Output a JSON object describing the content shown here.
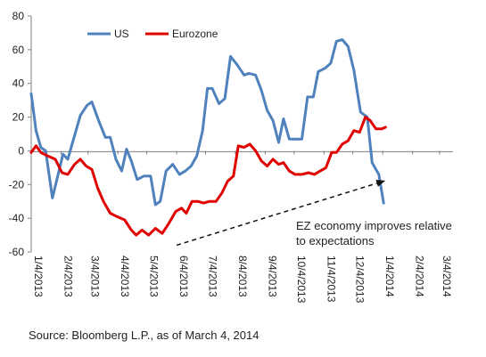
{
  "chart_data": {
    "type": "line",
    "title": "",
    "xlabel": "",
    "ylabel": "",
    "ylim": [
      -60,
      80
    ],
    "yticks": [
      -60,
      -40,
      -20,
      0,
      20,
      40,
      60,
      80
    ],
    "xlim": [
      "1/4/2013",
      "3/18/2014"
    ],
    "x_tick_labels": [
      "1/4/2013",
      "2/4/2013",
      "3/4/2013",
      "4/4/2013",
      "5/4/2013",
      "6/4/2013",
      "7/4/2013",
      "8/4/2013",
      "9/4/2013",
      "10/4/2013",
      "11/4/2013",
      "12/4/2013",
      "1/4/2014",
      "2/4/2014",
      "3/4/2014"
    ],
    "grid": false,
    "legend_position": "top-left",
    "series": [
      {
        "name": "US",
        "color": "#4f81bd",
        "points": [
          [
            "1/4/2013",
            34
          ],
          [
            "1/9/2013",
            12
          ],
          [
            "1/14/2013",
            2
          ],
          [
            "1/19/2013",
            0
          ],
          [
            "1/26/2013",
            -28
          ],
          [
            "2/1/2013",
            -14
          ],
          [
            "2/6/2013",
            -2
          ],
          [
            "2/11/2013",
            -5
          ],
          [
            "2/17/2013",
            7
          ],
          [
            "2/24/2013",
            21
          ],
          [
            "3/3/2013",
            27
          ],
          [
            "3/8/2013",
            29
          ],
          [
            "3/15/2013",
            18
          ],
          [
            "3/22/2013",
            8
          ],
          [
            "3/27/2013",
            8
          ],
          [
            "4/2/2013",
            -5
          ],
          [
            "4/8/2013",
            -12
          ],
          [
            "4/13/2013",
            1
          ],
          [
            "4/18/2013",
            -6
          ],
          [
            "4/24/2013",
            -17
          ],
          [
            "5/1/2013",
            -15
          ],
          [
            "5/8/2013",
            -15
          ],
          [
            "5/13/2013",
            -32
          ],
          [
            "5/18/2013",
            -30
          ],
          [
            "5/24/2013",
            -12
          ],
          [
            "5/31/2013",
            -8
          ],
          [
            "6/7/2013",
            -14
          ],
          [
            "6/13/2013",
            -12
          ],
          [
            "6/19/2013",
            -9
          ],
          [
            "6/25/2013",
            -3
          ],
          [
            "7/1/2013",
            12
          ],
          [
            "7/6/2013",
            37
          ],
          [
            "7/11/2013",
            37
          ],
          [
            "7/18/2013",
            28
          ],
          [
            "7/24/2013",
            31
          ],
          [
            "7/30/2013",
            56
          ],
          [
            "8/6/2013",
            51
          ],
          [
            "8/13/2013",
            45
          ],
          [
            "8/18/2013",
            46
          ],
          [
            "8/25/2013",
            45
          ],
          [
            "8/31/2013",
            36
          ],
          [
            "9/6/2013",
            24
          ],
          [
            "9/12/2013",
            18
          ],
          [
            "9/18/2013",
            5
          ],
          [
            "9/23/2013",
            19
          ],
          [
            "9/29/2013",
            7
          ],
          [
            "10/6/2013",
            7
          ],
          [
            "10/12/2013",
            7
          ],
          [
            "10/18/2013",
            32
          ],
          [
            "10/24/2013",
            32
          ],
          [
            "10/29/2013",
            47
          ],
          [
            "11/5/2013",
            49
          ],
          [
            "11/11/2013",
            52
          ],
          [
            "11/17/2013",
            65
          ],
          [
            "11/23/2013",
            66
          ],
          [
            "11/29/2013",
            62
          ],
          [
            "12/5/2013",
            48
          ],
          [
            "12/12/2013",
            23
          ],
          [
            "12/19/2013",
            20
          ],
          [
            "12/24/2013",
            -7
          ],
          [
            "12/31/2013",
            -14
          ],
          [
            "1/5/2014",
            -31
          ]
        ]
      },
      {
        "name": "Eurozone",
        "color": "#e00000",
        "points": [
          [
            "1/4/2013",
            -1
          ],
          [
            "1/9/2013",
            3
          ],
          [
            "1/14/2013",
            -1
          ],
          [
            "1/21/2013",
            -3
          ],
          [
            "1/29/2013",
            -5
          ],
          [
            "2/5/2013",
            -13
          ],
          [
            "2/11/2013",
            -14
          ],
          [
            "2/18/2013",
            -8
          ],
          [
            "2/24/2013",
            -5
          ],
          [
            "3/2/2013",
            -9
          ],
          [
            "3/8/2013",
            -11
          ],
          [
            "3/14/2013",
            -22
          ],
          [
            "3/20/2013",
            -30
          ],
          [
            "3/27/2013",
            -37
          ],
          [
            "4/3/2013",
            -39
          ],
          [
            "4/11/2013",
            -41
          ],
          [
            "4/18/2013",
            -47
          ],
          [
            "4/23/2013",
            -50
          ],
          [
            "4/29/2013",
            -47
          ],
          [
            "5/6/2013",
            -50
          ],
          [
            "5/13/2013",
            -46
          ],
          [
            "5/20/2013",
            -49
          ],
          [
            "5/27/2013",
            -43
          ],
          [
            "6/3/2013",
            -36
          ],
          [
            "6/9/2013",
            -34
          ],
          [
            "6/14/2013",
            -37
          ],
          [
            "6/20/2013",
            -30
          ],
          [
            "6/26/2013",
            -30
          ],
          [
            "7/2/2013",
            -31
          ],
          [
            "7/8/2013",
            -30
          ],
          [
            "7/15/2013",
            -30
          ],
          [
            "7/21/2013",
            -25
          ],
          [
            "7/27/2013",
            -18
          ],
          [
            "8/2/2013",
            -15
          ],
          [
            "8/7/2013",
            3
          ],
          [
            "8/13/2013",
            2
          ],
          [
            "8/19/2013",
            4
          ],
          [
            "8/25/2013",
            0
          ],
          [
            "8/31/2013",
            -6
          ],
          [
            "9/6/2013",
            -9
          ],
          [
            "9/12/2013",
            -5
          ],
          [
            "9/18/2013",
            -8
          ],
          [
            "9/23/2013",
            -7
          ],
          [
            "9/29/2013",
            -12
          ],
          [
            "10/5/2013",
            -14
          ],
          [
            "10/12/2013",
            -14
          ],
          [
            "10/19/2013",
            -13
          ],
          [
            "10/25/2013",
            -14
          ],
          [
            "10/31/2013",
            -12
          ],
          [
            "11/6/2013",
            -10
          ],
          [
            "11/12/2013",
            -1
          ],
          [
            "11/17/2013",
            -1
          ],
          [
            "11/23/2013",
            4
          ],
          [
            "11/29/2013",
            6
          ],
          [
            "12/5/2013",
            12
          ],
          [
            "12/11/2013",
            11
          ],
          [
            "12/17/2013",
            20
          ],
          [
            "12/22/2013",
            18
          ],
          [
            "12/28/2013",
            13
          ],
          [
            "1/3/2014",
            13
          ],
          [
            "1/7/2014",
            14
          ]
        ]
      }
    ],
    "annotation": {
      "text_line1": "EZ economy improves relative",
      "text_line2": "to expectations",
      "arrow_from": [
        "6/4/2013",
        -56
      ],
      "arrow_to": [
        "1/5/2014",
        -18
      ]
    }
  },
  "footer": {
    "source": "Source:  Bloomberg L.P., as of March 4, 2014"
  }
}
